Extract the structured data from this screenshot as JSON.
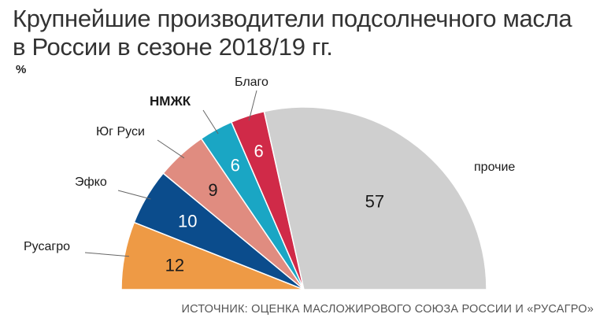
{
  "title_line1": "Крупнейшие производители подсолнечного масла",
  "title_line2": "в России в сезоне 2018/19 гг.",
  "unit": "%",
  "source": "ИСТОЧНИК: ОЦЕНКА МАСЛОЖИРОВОГО СОЮЗА РОССИИ И «РУСАГРО»",
  "chart_data": {
    "type": "pie",
    "subtype": "half-pie",
    "labels": [
      "Русагро",
      "Эфко",
      "Юг Руси",
      "НМЖК",
      "Благо",
      "прочие"
    ],
    "values": [
      12,
      10,
      9,
      6,
      6,
      57
    ],
    "value_labels": [
      "12",
      "10",
      "9",
      "6",
      "6",
      "57"
    ],
    "colors": [
      "#EE9A45",
      "#0B4C8C",
      "#E08C80",
      "#1AA6C4",
      "#D02A48",
      "#CFCFCF"
    ],
    "value_label_colors": [
      "#1a1a1a",
      "#ffffff",
      "#1a1a1a",
      "#ffffff",
      "#ffffff",
      "#1a1a1a"
    ]
  }
}
